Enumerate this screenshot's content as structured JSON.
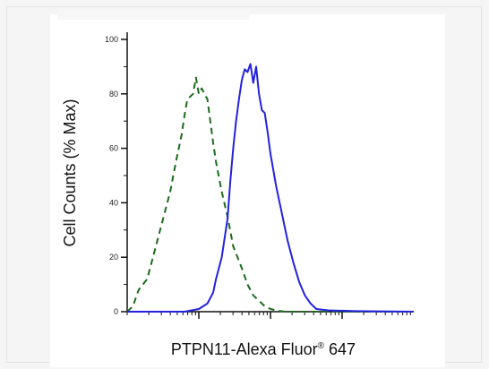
{
  "chart_data": {
    "type": "line",
    "xlabel_main": "PTPN11-Alexa Fluor",
    "xlabel_reg": "®",
    "xlabel_end": " 647",
    "ylabel": "Cell Counts (% Max)",
    "ylim": [
      0,
      100
    ],
    "yticks": [
      "0",
      "20",
      "40",
      "60",
      "80",
      "100"
    ],
    "x_scale": "log",
    "x_tick_labels": "none",
    "grid": false,
    "series": [
      {
        "style": "dashed",
        "color": "#1c6b1c",
        "x": [
          0.0,
          0.02,
          0.04,
          0.07,
          0.09,
          0.11,
          0.13,
          0.15,
          0.17,
          0.19,
          0.2,
          0.21,
          0.23,
          0.24,
          0.25,
          0.26,
          0.28,
          0.29,
          0.3,
          0.31,
          0.33,
          0.35,
          0.37,
          0.4,
          0.42,
          0.44,
          0.46,
          0.48,
          0.5,
          0.52,
          0.55,
          1.0
        ],
        "y": [
          0,
          2,
          8,
          12,
          20,
          28,
          36,
          44,
          55,
          65,
          72,
          78,
          80,
          86,
          80,
          82,
          78,
          70,
          62,
          55,
          44,
          35,
          24,
          16,
          10,
          6,
          4,
          2,
          1,
          0.5,
          0,
          0
        ]
      },
      {
        "style": "solid",
        "color": "#2222dd",
        "x": [
          0.0,
          0.2,
          0.25,
          0.28,
          0.3,
          0.31,
          0.33,
          0.35,
          0.36,
          0.37,
          0.38,
          0.39,
          0.4,
          0.41,
          0.42,
          0.43,
          0.44,
          0.45,
          0.46,
          0.47,
          0.48,
          0.49,
          0.5,
          0.52,
          0.54,
          0.56,
          0.58,
          0.6,
          0.62,
          0.64,
          0.66,
          0.7,
          0.8,
          1.0
        ],
        "y": [
          0,
          0,
          1,
          3,
          7,
          12,
          20,
          34,
          48,
          60,
          70,
          78,
          85,
          89,
          88,
          91,
          84,
          90,
          80,
          74,
          73,
          66,
          58,
          46,
          36,
          26,
          18,
          11,
          6,
          3,
          1,
          0.5,
          0.2,
          0
        ]
      }
    ]
  }
}
